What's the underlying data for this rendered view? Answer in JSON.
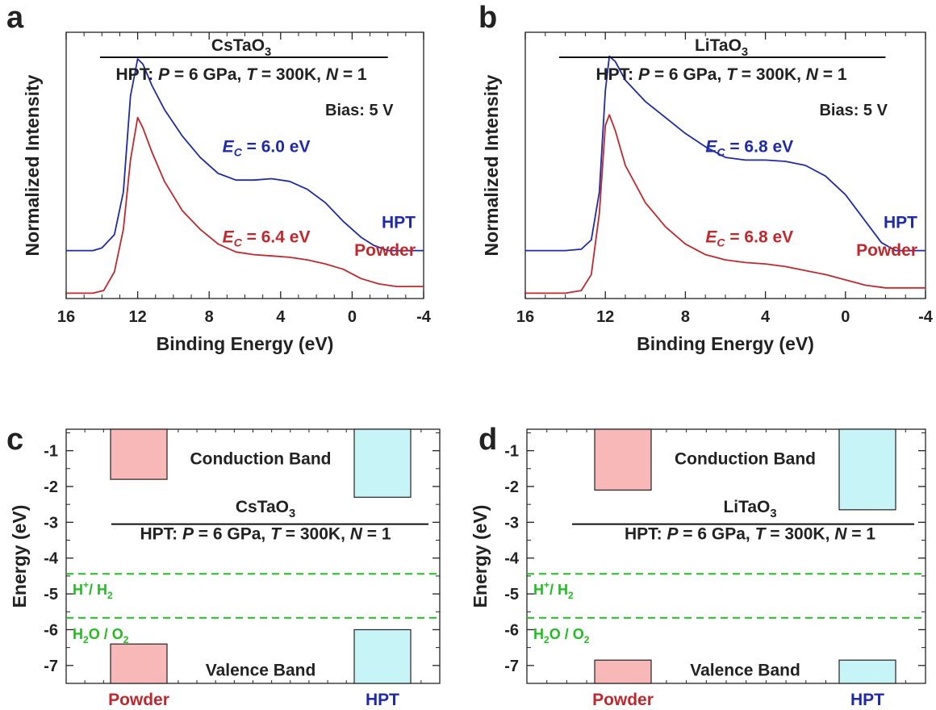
{
  "chart_data": [
    {
      "panel": "a",
      "type": "line",
      "title": "CsTaO3",
      "subtitle": {
        "prefix": "HPT: ",
        "p": "P",
        "pval": " = 6 GPa, ",
        "t": "T",
        "tval": " = 300K, ",
        "n": "N",
        "nval": " = 1"
      },
      "bias": "Bias: 5 V",
      "xlabel": "Binding Energy (eV)",
      "ylabel": "Normalized Intensity",
      "xlim": [
        16,
        -4
      ],
      "xticks": [
        16,
        12,
        8,
        4,
        0,
        -4
      ],
      "xtick_labels": [
        "16",
        "12",
        "8",
        "4",
        "0",
        "-4"
      ],
      "series": [
        {
          "name": "HPT",
          "color": "#1f2aa8",
          "ec_label": "= 6.0 eV",
          "x": [
            16,
            14.5,
            14.0,
            13.3,
            12.8,
            12.4,
            12.0,
            11.7,
            11.2,
            10.5,
            9.5,
            8.5,
            7.5,
            6.5,
            5.5,
            4.5,
            3.5,
            2.5,
            1.5,
            0.5,
            -0.5,
            -1.2,
            -2,
            -4
          ],
          "y": [
            0.18,
            0.18,
            0.19,
            0.24,
            0.4,
            0.76,
            0.9,
            0.88,
            0.8,
            0.71,
            0.61,
            0.53,
            0.47,
            0.445,
            0.445,
            0.45,
            0.44,
            0.41,
            0.36,
            0.29,
            0.23,
            0.2,
            0.18,
            0.18
          ]
        },
        {
          "name": "Powder",
          "color": "#c0282d",
          "ec_label": "= 6.4 eV",
          "x": [
            16,
            14.5,
            13.9,
            13.3,
            12.8,
            12.4,
            12.0,
            11.7,
            11.2,
            10.5,
            9.5,
            8.5,
            7.5,
            6.5,
            5.5,
            4.5,
            3.5,
            2.5,
            1.5,
            0.5,
            -0.5,
            -1.5,
            -2.5,
            -4
          ],
          "y": [
            0.02,
            0.02,
            0.03,
            0.1,
            0.26,
            0.52,
            0.68,
            0.64,
            0.55,
            0.44,
            0.33,
            0.26,
            0.205,
            0.175,
            0.165,
            0.16,
            0.155,
            0.145,
            0.13,
            0.11,
            0.075,
            0.055,
            0.045,
            0.045
          ]
        }
      ]
    },
    {
      "panel": "b",
      "type": "line",
      "title": "LiTaO3",
      "subtitle": {
        "prefix": "HPT: ",
        "p": "P",
        "pval": " = 6 GPa, ",
        "t": "T",
        "tval": " = 300K, ",
        "n": "N",
        "nval": " = 1"
      },
      "bias": "Bias: 5 V",
      "xlabel": "Binding Energy (eV)",
      "ylabel": "Normalized Intensity",
      "xlim": [
        16,
        -4
      ],
      "xticks": [
        16,
        12,
        8,
        4,
        0,
        -4
      ],
      "xtick_labels": [
        "16",
        "12",
        "8",
        "4",
        "0",
        "-4"
      ],
      "series": [
        {
          "name": "HPT",
          "color": "#1f2aa8",
          "ec_label": "= 6.8 eV",
          "x": [
            16,
            14.0,
            13.2,
            12.7,
            12.3,
            12.0,
            11.8,
            11.5,
            11.0,
            10.0,
            9.0,
            8.0,
            7.0,
            6.0,
            5.0,
            4.0,
            3.0,
            2.0,
            1.0,
            0.0,
            -1.0,
            -1.8,
            -2.5,
            -4
          ],
          "y": [
            0.18,
            0.18,
            0.185,
            0.22,
            0.4,
            0.78,
            0.91,
            0.89,
            0.82,
            0.74,
            0.68,
            0.62,
            0.57,
            0.53,
            0.52,
            0.52,
            0.515,
            0.5,
            0.46,
            0.39,
            0.29,
            0.21,
            0.18,
            0.18
          ]
        },
        {
          "name": "Powder",
          "color": "#c0282d",
          "ec_label": "= 6.8 eV",
          "x": [
            16,
            14.0,
            13.2,
            12.7,
            12.3,
            12.0,
            11.8,
            11.5,
            11.0,
            10.0,
            9.0,
            8.0,
            7.0,
            6.0,
            5.0,
            4.0,
            3.0,
            2.0,
            1.0,
            0.0,
            -1.0,
            -2.0,
            -4
          ],
          "y": [
            0.02,
            0.02,
            0.03,
            0.09,
            0.32,
            0.65,
            0.69,
            0.63,
            0.5,
            0.36,
            0.27,
            0.205,
            0.165,
            0.145,
            0.135,
            0.13,
            0.12,
            0.105,
            0.09,
            0.07,
            0.05,
            0.04,
            0.04
          ]
        }
      ]
    },
    {
      "panel": "c",
      "type": "bar",
      "title": "CsTaO3",
      "subtitle": {
        "prefix": "HPT: ",
        "p": "P",
        "pval": " = 6 GPa, ",
        "t": "T",
        "tval": " = 300K, ",
        "n": "N",
        "nval": " = 1"
      },
      "ylabel": "Energy (eV)",
      "ylim": [
        -7.5,
        -0.4
      ],
      "yticks": [
        -1,
        -2,
        -3,
        -4,
        -5,
        -6,
        -7
      ],
      "ytick_labels": [
        "-1",
        "-2",
        "-3",
        "-4",
        "-5",
        "-6",
        "-7"
      ],
      "categories": [
        "Powder",
        "HPT"
      ],
      "category_colors": [
        "#c0282d",
        "#1f2aa8"
      ],
      "conduction_band": {
        "label": "Conduction Band",
        "bottom": [
          -1.8,
          -2.3
        ]
      },
      "valence_band": {
        "label": "Valence Band",
        "top": [
          -6.4,
          -6.0
        ]
      },
      "box_colors": [
        "#f8b8b8",
        "#c7f4f6"
      ],
      "redox_levels": [
        {
          "label": "H+/ H2",
          "value": -4.44,
          "color": "#22bb22"
        },
        {
          "label": "H2O / O2",
          "value": -5.67,
          "color": "#22bb22"
        }
      ]
    },
    {
      "panel": "d",
      "type": "bar",
      "title": "LiTaO3",
      "subtitle": {
        "prefix": "HPT: ",
        "p": "P",
        "pval": " = 6 GPa, ",
        "t": "T",
        "tval": " = 300K, ",
        "n": "N",
        "nval": " = 1"
      },
      "ylabel": "Energy (eV)",
      "ylim": [
        -7.5,
        -0.4
      ],
      "yticks": [
        -1,
        -2,
        -3,
        -4,
        -5,
        -6,
        -7
      ],
      "ytick_labels": [
        "-1",
        "-2",
        "-3",
        "-4",
        "-5",
        "-6",
        "-7"
      ],
      "categories": [
        "Powder",
        "HPT"
      ],
      "category_colors": [
        "#c0282d",
        "#1f2aa8"
      ],
      "conduction_band": {
        "label": "Conduction Band",
        "bottom": [
          -2.1,
          -2.65
        ]
      },
      "valence_band": {
        "label": "Valence Band",
        "top": [
          -6.85,
          -6.85
        ]
      },
      "box_colors": [
        "#f8b8b8",
        "#c7f4f6"
      ],
      "redox_levels": [
        {
          "label": "H+/ H2",
          "value": -4.44,
          "color": "#22bb22"
        },
        {
          "label": "H2O / O2",
          "value": -5.67,
          "color": "#22bb22"
        }
      ]
    }
  ]
}
